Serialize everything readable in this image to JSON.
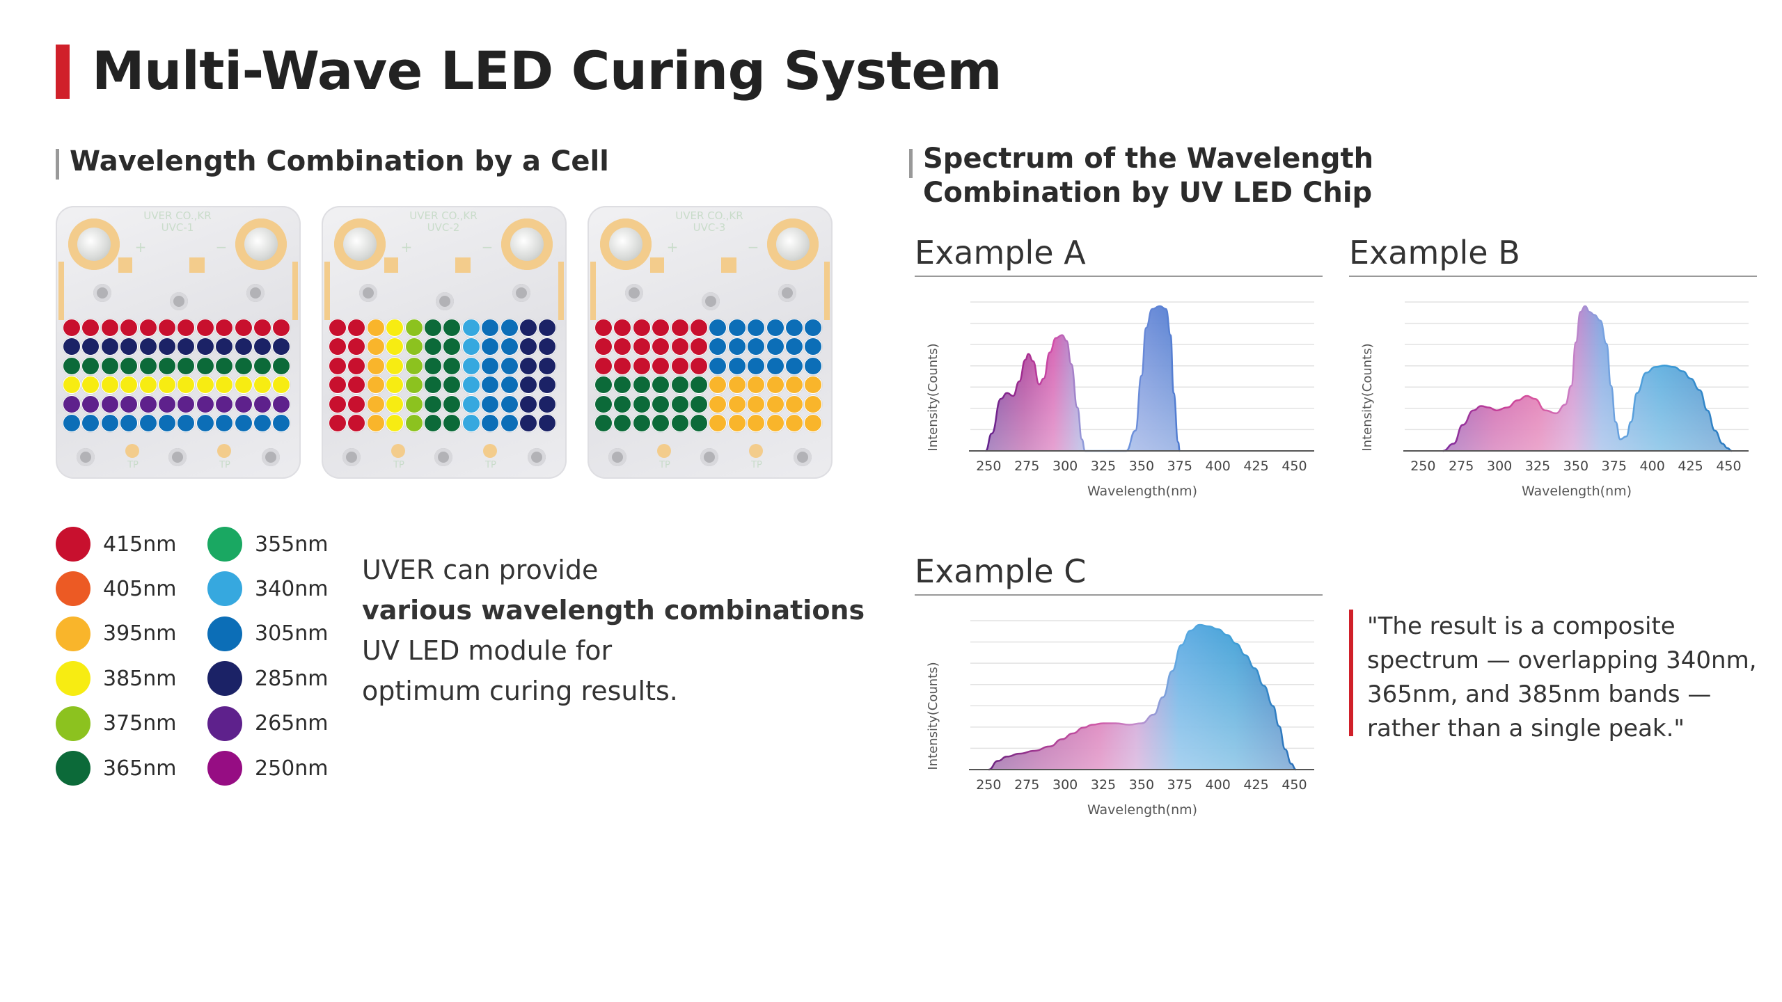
{
  "title": "Multi-Wave LED Curing System",
  "left_section": {
    "title": "Wavelength Combination by a Cell",
    "pcb_labels": [
      {
        "line1": "UVER CO.,KR",
        "line2": "UVC-1",
        "plus": "+",
        "minus": "−",
        "tp": [
          "TP",
          "TP"
        ]
      },
      {
        "line1": "UVER CO.,KR",
        "line2": "UVC-2",
        "plus": "+",
        "minus": "−",
        "tp": [
          "TP",
          "TP"
        ]
      },
      {
        "line1": "UVER CO.,KR",
        "line2": "UVC-3",
        "plus": "+",
        "minus": "−",
        "tp": [
          "TP",
          "TP"
        ]
      }
    ],
    "cells": [
      {
        "rows": [
          [
            "415",
            "415",
            "415",
            "415",
            "415",
            "415",
            "415",
            "415",
            "415",
            "415",
            "415",
            "415"
          ],
          [
            "285",
            "285",
            "285",
            "285",
            "285",
            "285",
            "285",
            "285",
            "285",
            "285",
            "285",
            "285"
          ],
          [
            "365",
            "365",
            "365",
            "365",
            "365",
            "365",
            "365",
            "365",
            "365",
            "365",
            "365",
            "365"
          ],
          [
            "385",
            "385",
            "385",
            "385",
            "385",
            "385",
            "385",
            "385",
            "385",
            "385",
            "385",
            "385"
          ],
          [
            "265",
            "265",
            "265",
            "265",
            "265",
            "265",
            "265",
            "265",
            "265",
            "265",
            "265",
            "265"
          ],
          [
            "305",
            "305",
            "305",
            "305",
            "305",
            "305",
            "305",
            "305",
            "305",
            "305",
            "305",
            "305"
          ]
        ]
      },
      {
        "rows": [
          [
            "415",
            "415",
            "395",
            "385",
            "375",
            "365",
            "365",
            "340",
            "305",
            "305",
            "285",
            "285"
          ],
          [
            "415",
            "415",
            "395",
            "385",
            "375",
            "365",
            "365",
            "340",
            "305",
            "305",
            "285",
            "285"
          ],
          [
            "415",
            "415",
            "395",
            "385",
            "375",
            "365",
            "365",
            "340",
            "305",
            "305",
            "285",
            "285"
          ],
          [
            "415",
            "415",
            "395",
            "385",
            "375",
            "365",
            "365",
            "340",
            "305",
            "305",
            "285",
            "285"
          ],
          [
            "415",
            "415",
            "395",
            "385",
            "375",
            "365",
            "365",
            "340",
            "305",
            "305",
            "285",
            "285"
          ],
          [
            "415",
            "415",
            "395",
            "385",
            "375",
            "365",
            "365",
            "340",
            "305",
            "305",
            "285",
            "285"
          ]
        ]
      },
      {
        "rows": [
          [
            "415",
            "415",
            "415",
            "415",
            "415",
            "415",
            "305",
            "305",
            "305",
            "305",
            "305",
            "305"
          ],
          [
            "415",
            "415",
            "415",
            "415",
            "415",
            "415",
            "305",
            "305",
            "305",
            "305",
            "305",
            "305"
          ],
          [
            "415",
            "415",
            "415",
            "415",
            "415",
            "415",
            "305",
            "305",
            "305",
            "305",
            "305",
            "305"
          ],
          [
            "365",
            "365",
            "365",
            "365",
            "365",
            "365",
            "395",
            "395",
            "395",
            "395",
            "395",
            "395"
          ],
          [
            "365",
            "365",
            "365",
            "365",
            "365",
            "365",
            "395",
            "395",
            "395",
            "395",
            "395",
            "395"
          ],
          [
            "365",
            "365",
            "365",
            "365",
            "365",
            "365",
            "395",
            "395",
            "395",
            "395",
            "395",
            "395"
          ]
        ]
      }
    ],
    "legend": [
      {
        "id": "415",
        "label": "415nm",
        "color": "#c8102e"
      },
      {
        "id": "405",
        "label": "405nm",
        "color": "#ec5a24"
      },
      {
        "id": "395",
        "label": "395nm",
        "color": "#f9b52b"
      },
      {
        "id": "385",
        "label": "385nm",
        "color": "#f7ec12"
      },
      {
        "id": "375",
        "label": "375nm",
        "color": "#8cc21f"
      },
      {
        "id": "365",
        "label": "365nm",
        "color": "#0c6a39"
      },
      {
        "id": "355",
        "label": "355nm",
        "color": "#1aa862"
      },
      {
        "id": "340",
        "label": "340nm",
        "color": "#36a8df"
      },
      {
        "id": "305",
        "label": "305nm",
        "color": "#0c6eb7"
      },
      {
        "id": "285",
        "label": "285nm",
        "color": "#1b2266"
      },
      {
        "id": "265",
        "label": "265nm",
        "color": "#5e218c"
      },
      {
        "id": "250",
        "label": "250nm",
        "color": "#960d83"
      }
    ],
    "description": {
      "line1": "UVER can provide",
      "line2": "various wavelength combinations",
      "line3": "UV LED module for",
      "line4": "optimum curing results."
    }
  },
  "right_section": {
    "title_line1": "Spectrum of the Wavelength",
    "title_line2": "Combination by UV LED Chip",
    "quote_lines": [
      "\"The result is a composite",
      "spectrum — overlapping 340nm,",
      "365nm, and 385nm bands —",
      "rather than a single peak.\""
    ]
  },
  "chart_data": [
    {
      "type": "area",
      "title": "Example A",
      "xlabel": "Wavelength(nm)",
      "ylabel": "Intensity(Counts)",
      "xticks": [
        250,
        275,
        300,
        325,
        350,
        375,
        400,
        425,
        450
      ],
      "xlim": [
        238,
        463
      ],
      "ylim": [
        0,
        1
      ],
      "grid": true,
      "x": [
        248,
        252,
        258,
        262,
        266,
        270,
        274,
        276,
        279,
        283,
        286,
        290,
        294,
        298,
        301,
        304,
        308,
        311,
        313,
        340,
        346,
        350,
        353,
        357,
        362,
        366,
        369,
        371,
        374,
        375
      ],
      "values": [
        0,
        0.12,
        0.36,
        0.4,
        0.38,
        0.48,
        0.63,
        0.67,
        0.62,
        0.46,
        0.5,
        0.68,
        0.78,
        0.8,
        0.76,
        0.6,
        0.3,
        0.08,
        0,
        0,
        0.14,
        0.52,
        0.85,
        0.98,
        1.0,
        0.98,
        0.8,
        0.4,
        0.06,
        0
      ],
      "gradient": [
        [
          0.0,
          "#5e218c"
        ],
        [
          0.2,
          "#a52c8f"
        ],
        [
          0.35,
          "#d04da8"
        ],
        [
          0.55,
          "#7cb2e8"
        ],
        [
          0.8,
          "#6a8ad8"
        ],
        [
          1.0,
          "#4f7bd0"
        ]
      ]
    },
    {
      "type": "area",
      "title": "Example B",
      "xlabel": "Wavelength(nm)",
      "ylabel": "Intensity(Counts)",
      "xticks": [
        250,
        275,
        300,
        325,
        350,
        375,
        400,
        425,
        450
      ],
      "xlim": [
        238,
        463
      ],
      "ylim": [
        0,
        1
      ],
      "grid": true,
      "x": [
        263,
        270,
        276,
        283,
        288,
        293,
        298,
        305,
        312,
        318,
        323,
        330,
        337,
        343,
        347,
        350,
        353,
        356,
        359,
        362,
        366,
        370,
        373,
        376,
        379,
        383,
        386,
        390,
        396,
        402,
        408,
        414,
        420,
        425,
        431,
        436,
        441,
        446,
        449,
        452
      ],
      "values": [
        0,
        0.05,
        0.18,
        0.28,
        0.31,
        0.3,
        0.28,
        0.3,
        0.35,
        0.38,
        0.36,
        0.28,
        0.26,
        0.32,
        0.45,
        0.75,
        0.96,
        1.0,
        0.96,
        0.94,
        0.9,
        0.74,
        0.45,
        0.2,
        0.08,
        0.1,
        0.2,
        0.4,
        0.54,
        0.58,
        0.59,
        0.58,
        0.55,
        0.5,
        0.42,
        0.28,
        0.14,
        0.05,
        0.02,
        0
      ],
      "gradient": [
        [
          0.0,
          "#7b2a9c"
        ],
        [
          0.18,
          "#c23d98"
        ],
        [
          0.33,
          "#d9559e"
        ],
        [
          0.45,
          "#c77fc7"
        ],
        [
          0.55,
          "#7aa2e0"
        ],
        [
          0.75,
          "#3d9ed8"
        ],
        [
          1.0,
          "#2b77be"
        ]
      ]
    },
    {
      "type": "area",
      "title": "Example C",
      "xlabel": "Wavelength(nm)",
      "ylabel": "Intensity(Counts)",
      "xticks": [
        250,
        275,
        300,
        325,
        350,
        375,
        400,
        425,
        450
      ],
      "xlim": [
        238,
        463
      ],
      "ylim": [
        0,
        1
      ],
      "grid": true,
      "x": [
        250,
        256,
        262,
        270,
        280,
        290,
        298,
        305,
        312,
        318,
        325,
        333,
        342,
        350,
        358,
        364,
        370,
        376,
        382,
        388,
        394,
        400,
        406,
        412,
        418,
        424,
        430,
        436,
        440,
        444,
        448,
        451
      ],
      "values": [
        0,
        0.06,
        0.09,
        0.11,
        0.13,
        0.16,
        0.21,
        0.25,
        0.29,
        0.31,
        0.32,
        0.32,
        0.31,
        0.32,
        0.38,
        0.5,
        0.68,
        0.86,
        0.96,
        1.0,
        0.99,
        0.97,
        0.93,
        0.87,
        0.79,
        0.7,
        0.58,
        0.44,
        0.3,
        0.14,
        0.04,
        0
      ],
      "gradient": [
        [
          0.0,
          "#6a237f"
        ],
        [
          0.18,
          "#a73b93"
        ],
        [
          0.36,
          "#d05aa7"
        ],
        [
          0.48,
          "#c48dcc"
        ],
        [
          0.62,
          "#5aa9e2"
        ],
        [
          0.8,
          "#3f9fd6"
        ],
        [
          1.0,
          "#2a6eb8"
        ]
      ]
    }
  ]
}
